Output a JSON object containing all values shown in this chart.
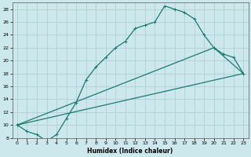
{
  "title": "",
  "xlabel": "Humidex (Indice chaleur)",
  "bg_color": "#cce8ec",
  "grid_color": "#b0d0d5",
  "line_color": "#1a7a6e",
  "xlim": [
    -0.5,
    23.5
  ],
  "ylim": [
    8,
    29
  ],
  "xticks": [
    0,
    1,
    2,
    3,
    4,
    5,
    6,
    7,
    8,
    9,
    10,
    11,
    12,
    13,
    14,
    15,
    16,
    17,
    18,
    19,
    20,
    21,
    22,
    23
  ],
  "yticks": [
    8,
    10,
    12,
    14,
    16,
    18,
    20,
    22,
    24,
    26,
    28
  ],
  "line1_x": [
    0,
    1,
    2,
    3,
    4,
    5,
    6,
    7,
    8,
    9,
    10,
    11,
    12,
    13,
    14,
    15,
    16,
    17,
    18,
    19,
    20,
    23
  ],
  "line1_y": [
    10,
    9,
    8.5,
    7.5,
    8.5,
    11,
    13.5,
    17,
    19,
    20.5,
    22,
    23,
    25,
    25.5,
    26,
    28.5,
    28,
    27.5,
    26.5,
    24,
    22,
    18
  ],
  "line2_x": [
    0,
    20,
    21,
    22,
    23
  ],
  "line2_y": [
    10,
    22,
    21,
    20.5,
    18
  ],
  "line3_x": [
    0,
    23
  ],
  "line3_y": [
    10,
    18
  ]
}
